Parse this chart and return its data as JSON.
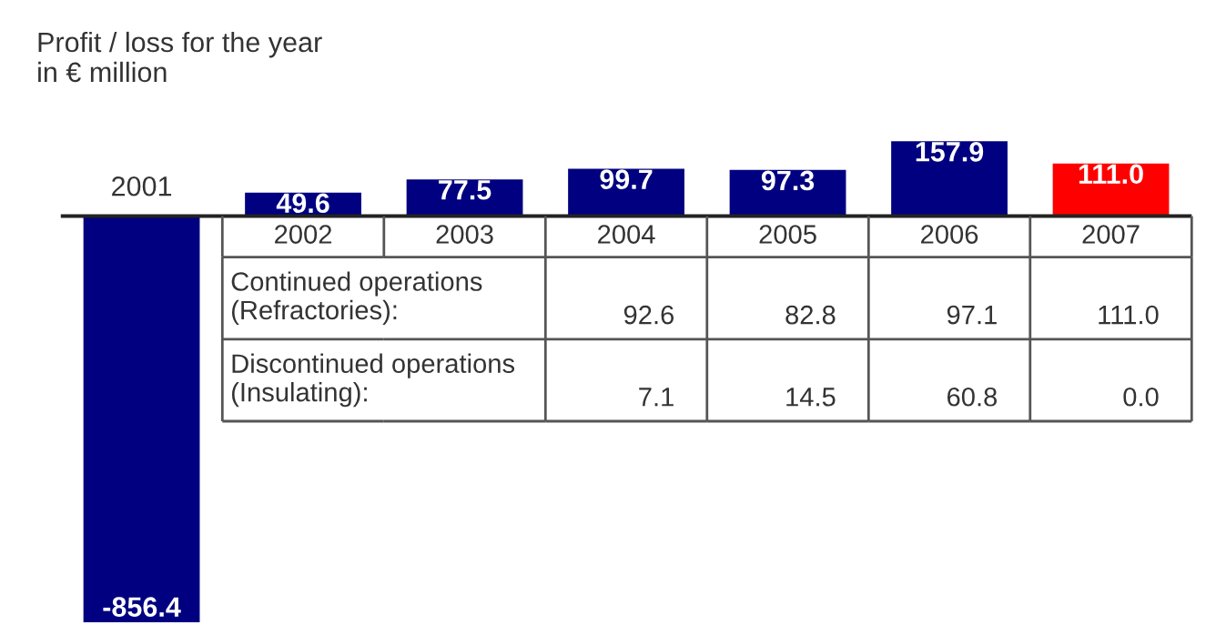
{
  "chart_data": {
    "type": "bar",
    "title": "Profit / loss for the year\nin € million",
    "categories": [
      "2001",
      "2002",
      "2003",
      "2004",
      "2005",
      "2006",
      "2007"
    ],
    "values": [
      -856.4,
      49.6,
      77.5,
      99.7,
      97.3,
      157.9,
      111.0
    ],
    "colors": [
      "#000080",
      "#000080",
      "#000080",
      "#000080",
      "#000080",
      "#000080",
      "#ff0000"
    ],
    "value_labels": [
      "-856.4",
      "49.6",
      "77.5",
      "99.7",
      "97.3",
      "157.9",
      "111.0"
    ],
    "annotations": [
      "Continued operations\n(Refractories):",
      "92.6",
      "82.8",
      "97.1",
      "111.0",
      "Discontinued operations\n(Insulating):",
      "7.1",
      "14.5",
      "60.8",
      "0.0"
    ]
  }
}
